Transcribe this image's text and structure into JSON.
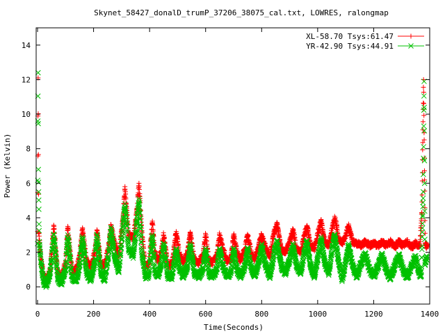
{
  "chart_data": {
    "type": "scatter",
    "title": "Skynet_58427_donalD_trumP_37206_38075_cal.txt, LOWRES, ralongmap",
    "xlabel": "Time(Seconds)",
    "ylabel": "Power (Kelvin)",
    "xlim": [
      -5,
      1400
    ],
    "ylim": [
      -1,
      15
    ],
    "xticks": [
      0,
      200,
      400,
      600,
      800,
      1000,
      1200,
      1400
    ],
    "yticks": [
      0,
      2,
      4,
      6,
      8,
      10,
      12,
      14
    ],
    "legend_position": "top-right",
    "grid": false,
    "series": [
      {
        "name": "XL-58.70 Tsys:61.47",
        "color": "#ff0000",
        "marker": "plus",
        "points": [
          [
            0,
            3.2
          ],
          [
            2,
            12.1
          ],
          [
            4,
            3.1
          ],
          [
            12,
            1.6
          ],
          [
            22,
            0.6
          ],
          [
            32,
            0.4
          ],
          [
            45,
            1.0
          ],
          [
            58,
            3.5
          ],
          [
            72,
            0.8
          ],
          [
            85,
            0.6
          ],
          [
            100,
            1.4
          ],
          [
            108,
            3.5
          ],
          [
            122,
            1.0
          ],
          [
            138,
            0.9
          ],
          [
            150,
            1.8
          ],
          [
            160,
            3.3
          ],
          [
            175,
            1.5
          ],
          [
            190,
            1.2
          ],
          [
            205,
            2.0
          ],
          [
            212,
            3.3
          ],
          [
            225,
            1.4
          ],
          [
            240,
            1.2
          ],
          [
            255,
            2.5
          ],
          [
            262,
            3.6
          ],
          [
            275,
            2.5
          ],
          [
            290,
            1.8
          ],
          [
            305,
            4.0
          ],
          [
            312,
            5.8
          ],
          [
            325,
            3.0
          ],
          [
            342,
            2.8
          ],
          [
            355,
            4.5
          ],
          [
            362,
            6.0
          ],
          [
            372,
            3.2
          ],
          [
            385,
            1.2
          ],
          [
            398,
            1.3
          ],
          [
            410,
            3.8
          ],
          [
            418,
            2.0
          ],
          [
            430,
            1.5
          ],
          [
            440,
            2.0
          ],
          [
            450,
            3.0
          ],
          [
            465,
            1.2
          ],
          [
            480,
            1.3
          ],
          [
            495,
            3.2
          ],
          [
            505,
            2.0
          ],
          [
            520,
            1.4
          ],
          [
            535,
            2.0
          ],
          [
            545,
            3.1
          ],
          [
            560,
            1.5
          ],
          [
            575,
            1.4
          ],
          [
            590,
            1.8
          ],
          [
            600,
            3.0
          ],
          [
            612,
            1.5
          ],
          [
            625,
            1.4
          ],
          [
            640,
            1.8
          ],
          [
            650,
            3.0
          ],
          [
            662,
            2.2
          ],
          [
            675,
            1.5
          ],
          [
            690,
            1.6
          ],
          [
            700,
            3.0
          ],
          [
            712,
            2.0
          ],
          [
            725,
            1.5
          ],
          [
            740,
            2.2
          ],
          [
            750,
            3.0
          ],
          [
            762,
            2.0
          ],
          [
            775,
            1.6
          ],
          [
            790,
            2.4
          ],
          [
            800,
            3.0
          ],
          [
            815,
            2.2
          ],
          [
            830,
            1.8
          ],
          [
            845,
            3.2
          ],
          [
            855,
            3.6
          ],
          [
            870,
            2.2
          ],
          [
            885,
            2.0
          ],
          [
            900,
            2.6
          ],
          [
            912,
            3.3
          ],
          [
            925,
            2.2
          ],
          [
            940,
            2.0
          ],
          [
            952,
            3.0
          ],
          [
            962,
            3.5
          ],
          [
            975,
            2.4
          ],
          [
            988,
            2.2
          ],
          [
            1000,
            3.0
          ],
          [
            1012,
            3.8
          ],
          [
            1025,
            2.6
          ],
          [
            1040,
            2.4
          ],
          [
            1055,
            3.6
          ],
          [
            1062,
            4.0
          ],
          [
            1075,
            2.8
          ],
          [
            1088,
            2.5
          ],
          [
            1100,
            3.0
          ],
          [
            1110,
            3.5
          ],
          [
            1125,
            2.6
          ],
          [
            1140,
            2.5
          ],
          [
            1155,
            2.4
          ],
          [
            1170,
            2.6
          ],
          [
            1185,
            2.4
          ],
          [
            1200,
            2.5
          ],
          [
            1215,
            2.4
          ],
          [
            1230,
            2.6
          ],
          [
            1245,
            2.4
          ],
          [
            1260,
            2.6
          ],
          [
            1275,
            2.3
          ],
          [
            1290,
            2.6
          ],
          [
            1305,
            2.4
          ],
          [
            1320,
            2.6
          ],
          [
            1335,
            2.3
          ],
          [
            1350,
            2.5
          ],
          [
            1365,
            2.4
          ],
          [
            1372,
            4.3
          ],
          [
            1378,
            12.0
          ],
          [
            1384,
            2.5
          ],
          [
            1392,
            2.3
          ]
        ]
      },
      {
        "name": "YR-42.90 Tsys:44.91",
        "color": "#00c000",
        "marker": "x",
        "points": [
          [
            0,
            2.5
          ],
          [
            1,
            9.6
          ],
          [
            2,
            12.4
          ],
          [
            3,
            6.8
          ],
          [
            6,
            2.6
          ],
          [
            12,
            1.4
          ],
          [
            22,
            0.3
          ],
          [
            32,
            0.1
          ],
          [
            45,
            0.8
          ],
          [
            58,
            3.0
          ],
          [
            72,
            0.5
          ],
          [
            85,
            0.2
          ],
          [
            100,
            1.0
          ],
          [
            108,
            3.0
          ],
          [
            122,
            0.6
          ],
          [
            138,
            0.3
          ],
          [
            150,
            1.2
          ],
          [
            160,
            2.9
          ],
          [
            175,
            0.8
          ],
          [
            190,
            0.4
          ],
          [
            205,
            1.4
          ],
          [
            212,
            3.0
          ],
          [
            225,
            0.9
          ],
          [
            240,
            0.4
          ],
          [
            255,
            2.0
          ],
          [
            262,
            3.4
          ],
          [
            275,
            1.8
          ],
          [
            290,
            0.9
          ],
          [
            305,
            3.5
          ],
          [
            312,
            4.8
          ],
          [
            325,
            2.2
          ],
          [
            342,
            1.8
          ],
          [
            355,
            3.8
          ],
          [
            362,
            5.1
          ],
          [
            372,
            2.0
          ],
          [
            385,
            0.6
          ],
          [
            398,
            0.7
          ],
          [
            410,
            3.0
          ],
          [
            418,
            1.0
          ],
          [
            430,
            0.6
          ],
          [
            440,
            1.2
          ],
          [
            450,
            2.4
          ],
          [
            465,
            0.6
          ],
          [
            480,
            0.6
          ],
          [
            495,
            2.2
          ],
          [
            505,
            1.2
          ],
          [
            520,
            0.6
          ],
          [
            535,
            1.2
          ],
          [
            545,
            2.4
          ],
          [
            560,
            0.8
          ],
          [
            575,
            0.6
          ],
          [
            590,
            1.0
          ],
          [
            600,
            2.2
          ],
          [
            612,
            0.8
          ],
          [
            625,
            0.6
          ],
          [
            640,
            1.0
          ],
          [
            650,
            2.2
          ],
          [
            662,
            1.2
          ],
          [
            675,
            0.6
          ],
          [
            690,
            0.8
          ],
          [
            700,
            2.2
          ],
          [
            712,
            1.0
          ],
          [
            725,
            0.6
          ],
          [
            740,
            1.2
          ],
          [
            750,
            2.2
          ],
          [
            762,
            1.1
          ],
          [
            775,
            0.6
          ],
          [
            790,
            1.4
          ],
          [
            800,
            2.4
          ],
          [
            815,
            1.2
          ],
          [
            830,
            0.6
          ],
          [
            845,
            2.0
          ],
          [
            855,
            2.6
          ],
          [
            870,
            1.2
          ],
          [
            885,
            0.8
          ],
          [
            900,
            1.6
          ],
          [
            912,
            2.4
          ],
          [
            925,
            1.2
          ],
          [
            940,
            0.8
          ],
          [
            952,
            2.0
          ],
          [
            962,
            2.6
          ],
          [
            975,
            1.2
          ],
          [
            988,
            0.6
          ],
          [
            1000,
            1.6
          ],
          [
            1012,
            2.8
          ],
          [
            1025,
            1.4
          ],
          [
            1040,
            0.8
          ],
          [
            1055,
            2.6
          ],
          [
            1062,
            3.0
          ],
          [
            1075,
            1.4
          ],
          [
            1088,
            0.4
          ],
          [
            1100,
            1.4
          ],
          [
            1110,
            2.4
          ],
          [
            1125,
            1.2
          ],
          [
            1140,
            0.6
          ],
          [
            1155,
            1.4
          ],
          [
            1170,
            1.9
          ],
          [
            1185,
            1.0
          ],
          [
            1200,
            0.6
          ],
          [
            1215,
            1.2
          ],
          [
            1230,
            1.8
          ],
          [
            1245,
            1.0
          ],
          [
            1260,
            0.5
          ],
          [
            1275,
            1.2
          ],
          [
            1290,
            1.8
          ],
          [
            1305,
            1.0
          ],
          [
            1320,
            0.5
          ],
          [
            1335,
            1.2
          ],
          [
            1350,
            1.8
          ],
          [
            1360,
            0.9
          ],
          [
            1370,
            0.6
          ],
          [
            1374,
            3.4
          ],
          [
            1377,
            5.5
          ],
          [
            1380,
            11.9
          ],
          [
            1383,
            1.4
          ],
          [
            1390,
            1.7
          ]
        ]
      }
    ]
  }
}
